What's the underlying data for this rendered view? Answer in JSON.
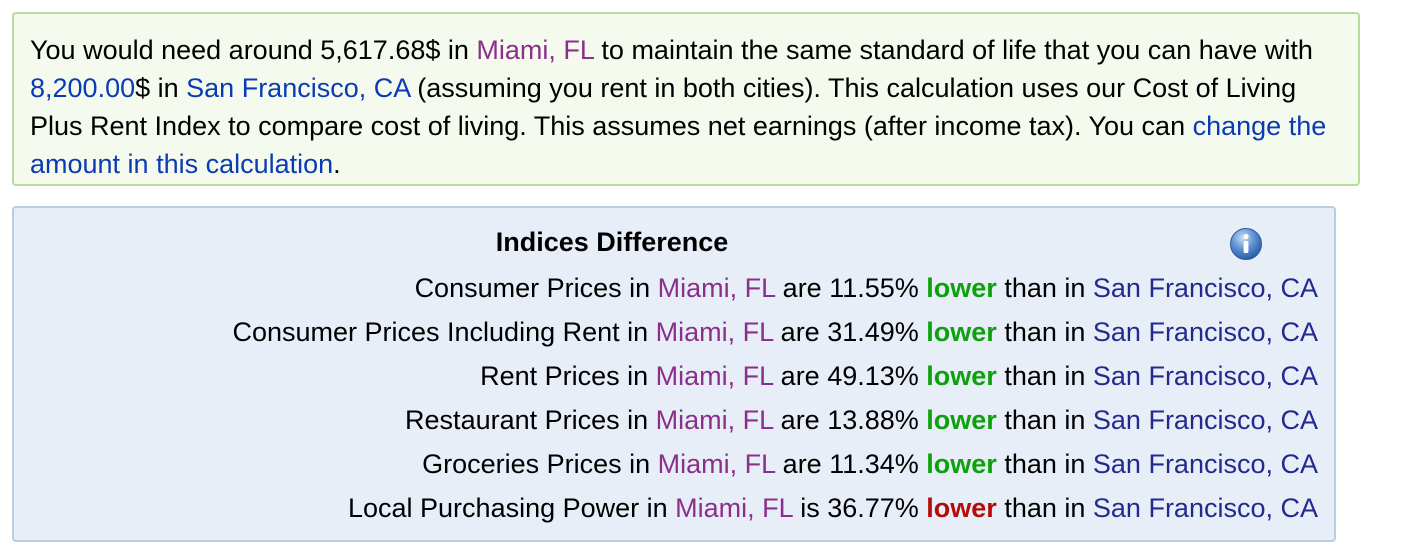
{
  "summary": {
    "t1": "You would need around ",
    "amount_target": "5,617.68$",
    "t2": " in ",
    "city_target": "Miami, FL",
    "t3": " to maintain the same standard of life that you can have with ",
    "amount_source": "8,200.00",
    "t4": "$ in ",
    "city_source": "San Francisco, CA",
    "t5": " (assuming you rent in both cities). This calculation uses our Cost of Living Plus Rent Index to compare cost of living. This assumes net earnings (after income tax). You can ",
    "change_link": "change the amount in this calculation",
    "t6": "."
  },
  "indices": {
    "title": "Indices Difference",
    "info_icon": "info-icon",
    "connector": " than in ",
    "rows": [
      {
        "label": "Consumer Prices in ",
        "city": "Miami, FL",
        "verb": " are ",
        "percent": "11.55%",
        "direction": "lower",
        "other_city": "San Francisco, CA",
        "direction_color": "#0ea10e"
      },
      {
        "label": "Consumer Prices Including Rent in ",
        "city": "Miami, FL",
        "verb": " are ",
        "percent": "31.49%",
        "direction": "lower",
        "other_city": "San Francisco, CA",
        "direction_color": "#0ea10e"
      },
      {
        "label": "Rent Prices in ",
        "city": "Miami, FL",
        "verb": " are ",
        "percent": "49.13%",
        "direction": "lower",
        "other_city": "San Francisco, CA",
        "direction_color": "#0ea10e"
      },
      {
        "label": "Restaurant Prices in ",
        "city": "Miami, FL",
        "verb": " are ",
        "percent": "13.88%",
        "direction": "lower",
        "other_city": "San Francisco, CA",
        "direction_color": "#0ea10e"
      },
      {
        "label": "Groceries Prices in ",
        "city": "Miami, FL",
        "verb": " are ",
        "percent": "11.34%",
        "direction": "lower",
        "other_city": "San Francisco, CA",
        "direction_color": "#0ea10e"
      },
      {
        "label": "Local Purchasing Power in ",
        "city": "Miami, FL",
        "verb": " is ",
        "percent": "36.77%",
        "direction": "lower",
        "other_city": "San Francisco, CA",
        "direction_color": "#b40b0b"
      }
    ]
  }
}
